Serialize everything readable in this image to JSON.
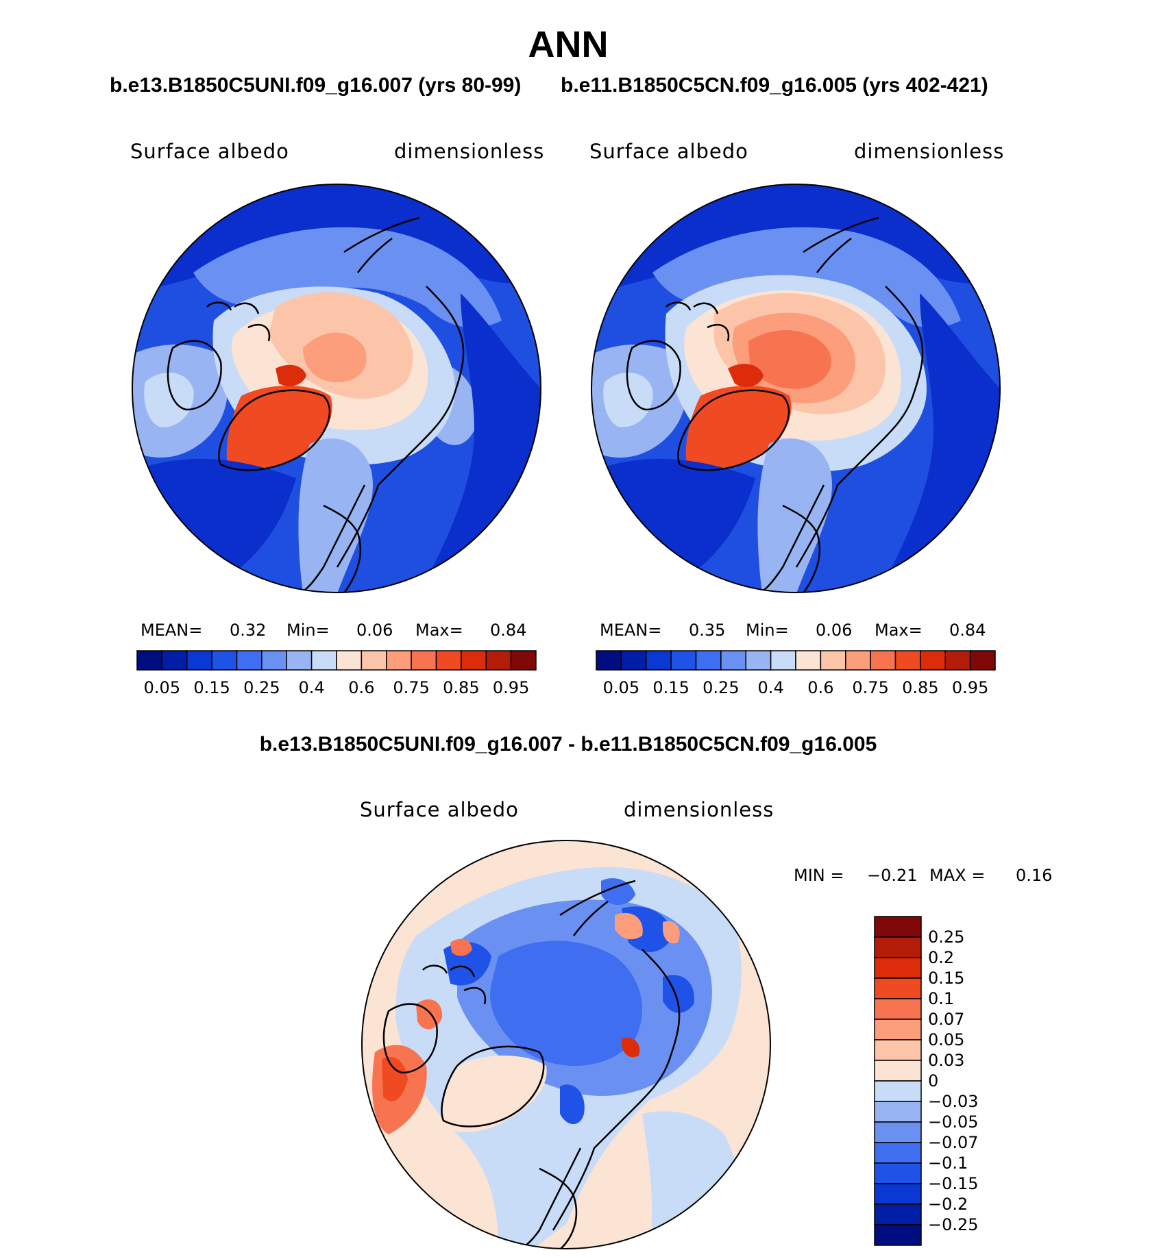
{
  "title": "ANN",
  "case_titles": {
    "left": "b.e13.B1850C5UNI.f09_g16.007 (yrs 80-99)",
    "right": "b.e11.B1850C5CN.f09_g16.005 (yrs 402-421)"
  },
  "diff_title": "b.e13.B1850C5UNI.f09_g16.007 - b.e11.B1850C5CN.f09_g16.005",
  "variable": "Surface albedo",
  "units": "dimensionless",
  "panels": [
    {
      "stats_label_mean": "MEAN=",
      "mean": "0.32",
      "stats_label_min": "Min=",
      "min": "0.06",
      "stats_label_max": "Max=",
      "max": "0.84"
    },
    {
      "stats_label_mean": "MEAN=",
      "mean": "0.35",
      "stats_label_min": "Min=",
      "min": "0.06",
      "stats_label_max": "Max=",
      "max": "0.84"
    }
  ],
  "diff_stats": {
    "min_label": "MIN =",
    "min": "−0.21",
    "max_label": "MAX =",
    "max": "0.16"
  },
  "chart_data": [
    {
      "type": "heatmap",
      "projection": "north polar stereographic",
      "title": "b.e13.B1850C5UNI.f09_g16.007 (yrs 80-99)",
      "variable": "Surface albedo",
      "units": "dimensionless",
      "mean": 0.32,
      "min": 0.06,
      "max": 0.84,
      "colorbar_levels": [
        0.05,
        0.1,
        0.15,
        0.2,
        0.25,
        0.3,
        0.4,
        0.5,
        0.6,
        0.7,
        0.75,
        0.8,
        0.85,
        0.9,
        0.95
      ],
      "colorbar_tick_labels": [
        "0.05",
        "0.15",
        "0.25",
        "0.4",
        "0.6",
        "0.75",
        "0.85",
        "0.95"
      ]
    },
    {
      "type": "heatmap",
      "projection": "north polar stereographic",
      "title": "b.e11.B1850C5CN.f09_g16.005 (yrs 402-421)",
      "variable": "Surface albedo",
      "units": "dimensionless",
      "mean": 0.35,
      "min": 0.06,
      "max": 0.84,
      "colorbar_levels": [
        0.05,
        0.1,
        0.15,
        0.2,
        0.25,
        0.3,
        0.4,
        0.5,
        0.6,
        0.7,
        0.75,
        0.8,
        0.85,
        0.9,
        0.95
      ],
      "colorbar_tick_labels": [
        "0.05",
        "0.15",
        "0.25",
        "0.4",
        "0.6",
        "0.75",
        "0.85",
        "0.95"
      ]
    },
    {
      "type": "heatmap",
      "projection": "north polar stereographic",
      "title": "b.e13.B1850C5UNI.f09_g16.007 - b.e11.B1850C5CN.f09_g16.005",
      "variable": "Surface albedo",
      "units": "dimensionless",
      "min": -0.21,
      "max": 0.16,
      "colorbar_tick_labels": [
        "0.25",
        "0.2",
        "0.15",
        "0.1",
        "0.07",
        "0.05",
        "0.03",
        "0",
        "−0.03",
        "−0.05",
        "−0.07",
        "−0.1",
        "−0.15",
        "−0.2",
        "−0.25"
      ]
    }
  ],
  "colors": {
    "seq_colorbar": [
      "#000d80",
      "#001ea6",
      "#0a38d2",
      "#1f52e6",
      "#3f6ef0",
      "#6a90f2",
      "#98b4f2",
      "#c8dcf8",
      "#fce4d4",
      "#fcc4a8",
      "#fc9e7c",
      "#f87450",
      "#f04a22",
      "#dc2c0a",
      "#b41c0a",
      "#800808"
    ],
    "diff_colorbar": [
      "#800808",
      "#b41c0a",
      "#dc2c0a",
      "#f04a22",
      "#f87450",
      "#fc9e7c",
      "#fcc4a8",
      "#fce4d4",
      "#c8dcf8",
      "#98b4f2",
      "#6a90f2",
      "#3f6ef0",
      "#1f52e6",
      "#0a38d2",
      "#001ea6",
      "#000d80"
    ]
  }
}
